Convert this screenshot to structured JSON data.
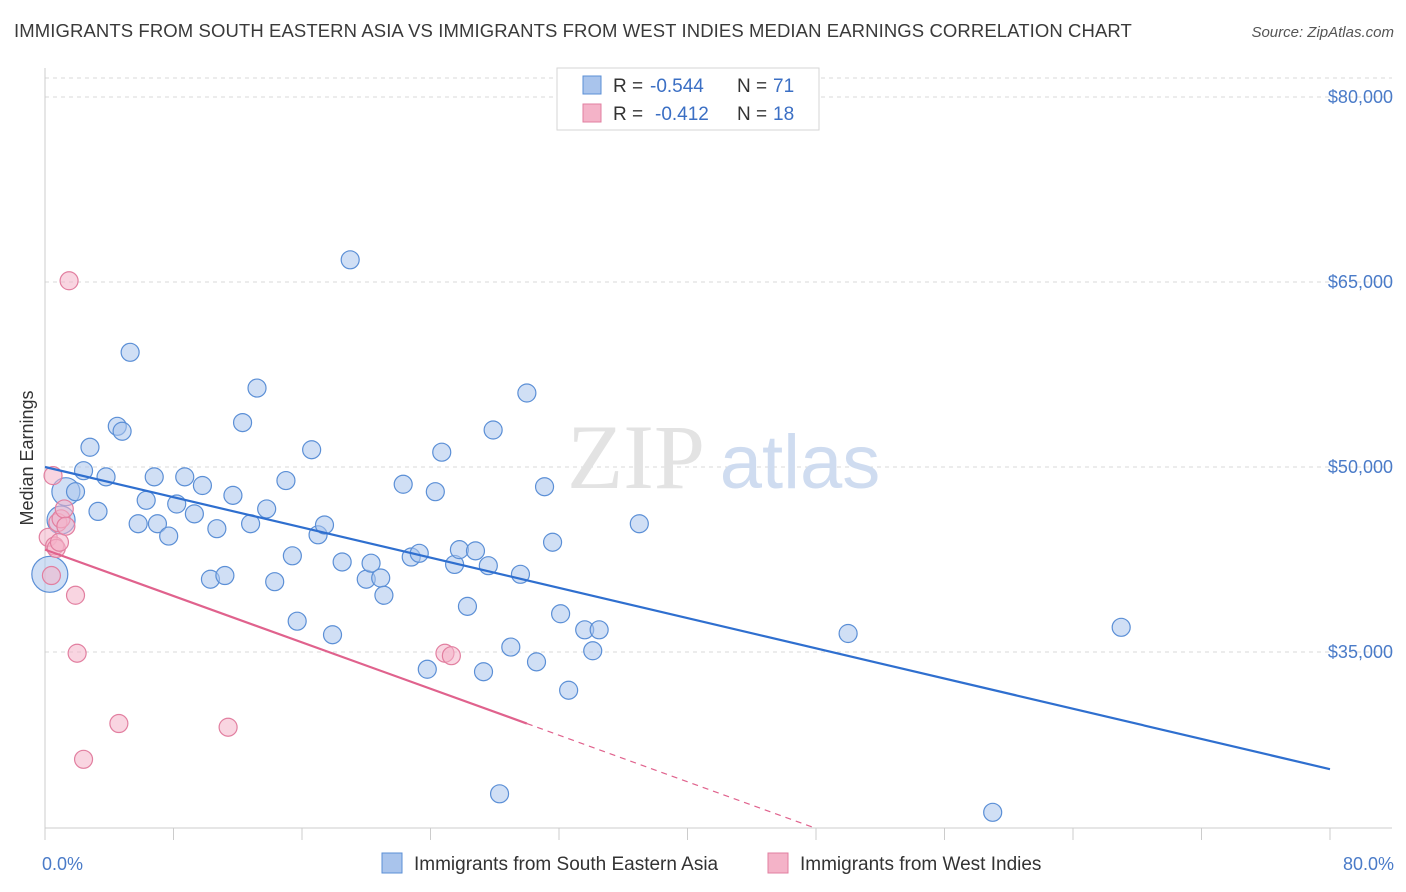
{
  "title": "IMMIGRANTS FROM SOUTH EASTERN ASIA VS IMMIGRANTS FROM WEST INDIES MEDIAN EARNINGS CORRELATION CHART",
  "source": "Source: ZipAtlas.com",
  "watermark": {
    "zip": "ZIP",
    "atlas": "atlas"
  },
  "legend": {
    "rows": [
      {
        "r_label": "R = ",
        "r_value": "-0.544",
        "n_label": "N = ",
        "n_value": "71"
      },
      {
        "r_label": "R = ",
        "r_value": "-0.412",
        "n_label": "N = ",
        "n_value": "18"
      }
    ]
  },
  "colors": {
    "blue_fill": "#a9c4ec",
    "blue_stroke": "#5b8fd6",
    "blue_line": "#2f6fcf",
    "pink_fill": "#f4b3c8",
    "pink_stroke": "#e27fa0",
    "pink_line": "#e0628d",
    "grid": "#d9d9d9",
    "axis_label": "#4a7bc8"
  },
  "chart_data": {
    "type": "scatter",
    "xlabel": "",
    "ylabel": "Median Earnings",
    "xlim": [
      0,
      80
    ],
    "ylim": [
      20000,
      83000
    ],
    "x_ticks_labels": [
      "0.0%",
      "80.0%"
    ],
    "y_ticks": [
      {
        "value": 35000,
        "label": "$35,000"
      },
      {
        "value": 50000,
        "label": "$50,000"
      },
      {
        "value": 65000,
        "label": "$65,000"
      },
      {
        "value": 80000,
        "label": "$80,000"
      }
    ],
    "grid": true,
    "legend_position": "top-center",
    "series": [
      {
        "name": "Immigrants from South Eastern Asia",
        "color": "#a9c4ec",
        "trend": {
          "x0": 0,
          "y0": 50000,
          "x1": 80,
          "y1": 25500
        },
        "points": [
          {
            "x": 0.3,
            "y": 41300,
            "s": 3
          },
          {
            "x": 1.0,
            "y": 45700,
            "s": 2
          },
          {
            "x": 1.3,
            "y": 48000,
            "s": 2
          },
          {
            "x": 1.9,
            "y": 48000,
            "s": 1
          },
          {
            "x": 2.4,
            "y": 49700,
            "s": 1
          },
          {
            "x": 2.8,
            "y": 51600,
            "s": 1
          },
          {
            "x": 3.3,
            "y": 46400,
            "s": 1
          },
          {
            "x": 3.8,
            "y": 49200,
            "s": 1
          },
          {
            "x": 4.5,
            "y": 53300,
            "s": 1
          },
          {
            "x": 4.8,
            "y": 52900,
            "s": 1
          },
          {
            "x": 5.3,
            "y": 59300,
            "s": 1
          },
          {
            "x": 5.8,
            "y": 45400,
            "s": 1
          },
          {
            "x": 6.3,
            "y": 47300,
            "s": 1
          },
          {
            "x": 6.8,
            "y": 49200,
            "s": 1
          },
          {
            "x": 7.0,
            "y": 45400,
            "s": 1
          },
          {
            "x": 7.7,
            "y": 44400,
            "s": 1
          },
          {
            "x": 8.2,
            "y": 47000,
            "s": 1
          },
          {
            "x": 8.7,
            "y": 49200,
            "s": 1
          },
          {
            "x": 9.3,
            "y": 46200,
            "s": 1
          },
          {
            "x": 9.8,
            "y": 48500,
            "s": 1
          },
          {
            "x": 10.3,
            "y": 40900,
            "s": 1
          },
          {
            "x": 10.7,
            "y": 45000,
            "s": 1
          },
          {
            "x": 11.2,
            "y": 41200,
            "s": 1
          },
          {
            "x": 11.7,
            "y": 47700,
            "s": 1
          },
          {
            "x": 12.3,
            "y": 53600,
            "s": 1
          },
          {
            "x": 12.8,
            "y": 45400,
            "s": 1
          },
          {
            "x": 13.2,
            "y": 56400,
            "s": 1
          },
          {
            "x": 13.8,
            "y": 46600,
            "s": 1
          },
          {
            "x": 14.3,
            "y": 40700,
            "s": 1
          },
          {
            "x": 15.0,
            "y": 48900,
            "s": 1
          },
          {
            "x": 15.4,
            "y": 42800,
            "s": 1
          },
          {
            "x": 15.7,
            "y": 37500,
            "s": 1
          },
          {
            "x": 16.6,
            "y": 51400,
            "s": 1
          },
          {
            "x": 17.0,
            "y": 44500,
            "s": 1
          },
          {
            "x": 17.4,
            "y": 45300,
            "s": 1
          },
          {
            "x": 17.9,
            "y": 36400,
            "s": 1
          },
          {
            "x": 18.5,
            "y": 42300,
            "s": 1
          },
          {
            "x": 19.0,
            "y": 66800,
            "s": 1
          },
          {
            "x": 20.0,
            "y": 40900,
            "s": 1
          },
          {
            "x": 20.3,
            "y": 42200,
            "s": 1
          },
          {
            "x": 20.9,
            "y": 41000,
            "s": 1
          },
          {
            "x": 21.1,
            "y": 39600,
            "s": 1
          },
          {
            "x": 22.3,
            "y": 48600,
            "s": 1
          },
          {
            "x": 22.8,
            "y": 42700,
            "s": 1
          },
          {
            "x": 23.3,
            "y": 43000,
            "s": 1
          },
          {
            "x": 23.8,
            "y": 33600,
            "s": 1
          },
          {
            "x": 24.3,
            "y": 48000,
            "s": 1
          },
          {
            "x": 24.7,
            "y": 51200,
            "s": 1
          },
          {
            "x": 25.5,
            "y": 42100,
            "s": 1
          },
          {
            "x": 25.8,
            "y": 43300,
            "s": 1
          },
          {
            "x": 26.3,
            "y": 38700,
            "s": 1
          },
          {
            "x": 26.8,
            "y": 43200,
            "s": 1
          },
          {
            "x": 27.3,
            "y": 33400,
            "s": 1
          },
          {
            "x": 27.6,
            "y": 42000,
            "s": 1
          },
          {
            "x": 27.9,
            "y": 53000,
            "s": 1
          },
          {
            "x": 28.3,
            "y": 23500,
            "s": 1
          },
          {
            "x": 29.0,
            "y": 35400,
            "s": 1
          },
          {
            "x": 29.6,
            "y": 41300,
            "s": 1
          },
          {
            "x": 30.0,
            "y": 56000,
            "s": 1
          },
          {
            "x": 30.6,
            "y": 34200,
            "s": 1
          },
          {
            "x": 31.1,
            "y": 48400,
            "s": 1
          },
          {
            "x": 31.6,
            "y": 43900,
            "s": 1
          },
          {
            "x": 32.1,
            "y": 38100,
            "s": 1
          },
          {
            "x": 32.6,
            "y": 31900,
            "s": 1
          },
          {
            "x": 33.6,
            "y": 36800,
            "s": 1
          },
          {
            "x": 34.1,
            "y": 35100,
            "s": 1
          },
          {
            "x": 34.5,
            "y": 36800,
            "s": 1
          },
          {
            "x": 37.0,
            "y": 45400,
            "s": 1
          },
          {
            "x": 50.0,
            "y": 36500,
            "s": 1
          },
          {
            "x": 59.0,
            "y": 22000,
            "s": 1
          },
          {
            "x": 67.0,
            "y": 37000,
            "s": 1
          }
        ]
      },
      {
        "name": "Immigrants from West Indies",
        "color": "#f4b3c8",
        "trend": {
          "x0": 0,
          "y0": 43300,
          "x1": 30,
          "y1": 29200
        },
        "trend_dashed": {
          "x0": 30,
          "y0": 29200,
          "x1": 48,
          "y1": 20700
        },
        "points": [
          {
            "x": 0.2,
            "y": 44300,
            "s": 1
          },
          {
            "x": 0.4,
            "y": 41200,
            "s": 1
          },
          {
            "x": 0.5,
            "y": 49300,
            "s": 1
          },
          {
            "x": 0.6,
            "y": 43600,
            "s": 1
          },
          {
            "x": 0.7,
            "y": 43400,
            "s": 1
          },
          {
            "x": 0.8,
            "y": 45500,
            "s": 1
          },
          {
            "x": 0.9,
            "y": 43900,
            "s": 1
          },
          {
            "x": 1.0,
            "y": 45800,
            "s": 1
          },
          {
            "x": 1.2,
            "y": 46600,
            "s": 1
          },
          {
            "x": 1.3,
            "y": 45200,
            "s": 1
          },
          {
            "x": 1.5,
            "y": 65100,
            "s": 1
          },
          {
            "x": 1.9,
            "y": 39600,
            "s": 1
          },
          {
            "x": 2.0,
            "y": 34900,
            "s": 1
          },
          {
            "x": 2.4,
            "y": 26300,
            "s": 1
          },
          {
            "x": 4.6,
            "y": 29200,
            "s": 1
          },
          {
            "x": 11.4,
            "y": 28900,
            "s": 1
          },
          {
            "x": 24.9,
            "y": 34900,
            "s": 1
          },
          {
            "x": 25.3,
            "y": 34700,
            "s": 1
          }
        ]
      }
    ]
  }
}
